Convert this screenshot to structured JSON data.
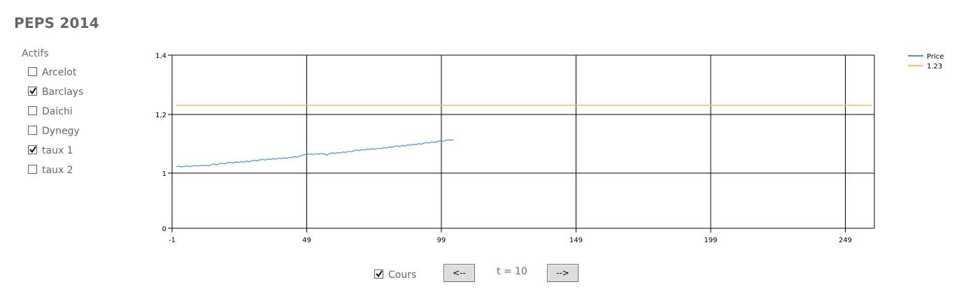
{
  "app": {
    "title": "PEPS 2014"
  },
  "sidebar": {
    "header": "Actifs",
    "items": [
      {
        "label": "Arcelot",
        "checked": false
      },
      {
        "label": "Barclays",
        "checked": true
      },
      {
        "label": "Daichi",
        "checked": false
      },
      {
        "label": "Dynegy",
        "checked": false
      },
      {
        "label": "taux 1",
        "checked": true
      },
      {
        "label": "taux 2",
        "checked": false
      }
    ]
  },
  "controls": {
    "cours_label": "Cours",
    "cours_checked": true,
    "prev_label": "<--",
    "next_label": "-->",
    "time_label": "t = 10"
  },
  "chart_data": {
    "type": "line",
    "title": "",
    "xlabel": "",
    "ylabel": "",
    "x_ticks": [
      "-1",
      "49",
      "99",
      "149",
      "199",
      "249"
    ],
    "y_ticks": [
      "0",
      "1",
      "1,2",
      "1,4"
    ],
    "grid": true,
    "legend_position": "top-right",
    "series": [
      {
        "name": "Price",
        "color": "#4a90d9",
        "x": [
          0,
          1,
          2,
          3,
          4,
          5,
          6,
          7,
          8,
          9,
          10,
          11,
          12,
          13,
          14,
          15,
          16,
          17,
          18,
          19,
          20,
          21,
          22,
          23,
          24,
          25,
          26,
          27,
          28,
          29,
          30,
          31,
          32,
          33,
          34,
          35,
          36,
          37,
          38,
          39,
          40,
          41,
          42,
          43,
          44,
          45,
          46,
          47,
          48,
          49,
          50,
          51,
          52,
          53,
          54,
          55,
          56,
          57,
          58,
          59,
          60,
          61,
          62,
          63,
          64,
          65,
          66,
          67,
          68,
          69,
          70,
          71,
          72,
          73,
          74,
          75,
          76,
          77,
          78,
          79,
          80,
          81,
          82,
          83,
          84,
          85,
          86,
          87,
          88,
          89,
          90,
          91,
          92,
          93,
          94,
          95,
          96,
          97,
          98,
          99,
          100,
          101,
          102,
          103
        ],
        "values": [
          1.022,
          1.024,
          1.021,
          1.023,
          1.025,
          1.022,
          1.024,
          1.026,
          1.024,
          1.026,
          1.025,
          1.027,
          1.024,
          1.029,
          1.031,
          1.028,
          1.032,
          1.034,
          1.031,
          1.035,
          1.037,
          1.034,
          1.038,
          1.036,
          1.039,
          1.037,
          1.041,
          1.038,
          1.042,
          1.044,
          1.041,
          1.045,
          1.047,
          1.044,
          1.048,
          1.046,
          1.049,
          1.047,
          1.051,
          1.049,
          1.052,
          1.05,
          1.054,
          1.052,
          1.056,
          1.054,
          1.058,
          1.061,
          1.063,
          1.064,
          1.065,
          1.063,
          1.066,
          1.064,
          1.067,
          1.065,
          1.061,
          1.066,
          1.069,
          1.066,
          1.07,
          1.068,
          1.072,
          1.07,
          1.074,
          1.072,
          1.076,
          1.079,
          1.076,
          1.08,
          1.078,
          1.082,
          1.08,
          1.083,
          1.081,
          1.085,
          1.083,
          1.087,
          1.085,
          1.089,
          1.087,
          1.091,
          1.093,
          1.09,
          1.094,
          1.092,
          1.096,
          1.094,
          1.098,
          1.096,
          1.1,
          1.098,
          1.102,
          1.104,
          1.102,
          1.106,
          1.104,
          1.108,
          1.11,
          1.108,
          1.111,
          1.113,
          1.111,
          1.114
        ]
      },
      {
        "name": "1.23",
        "color": "#f0c070",
        "x": [
          0,
          255
        ],
        "values": [
          1.23,
          1.23
        ]
      }
    ]
  }
}
